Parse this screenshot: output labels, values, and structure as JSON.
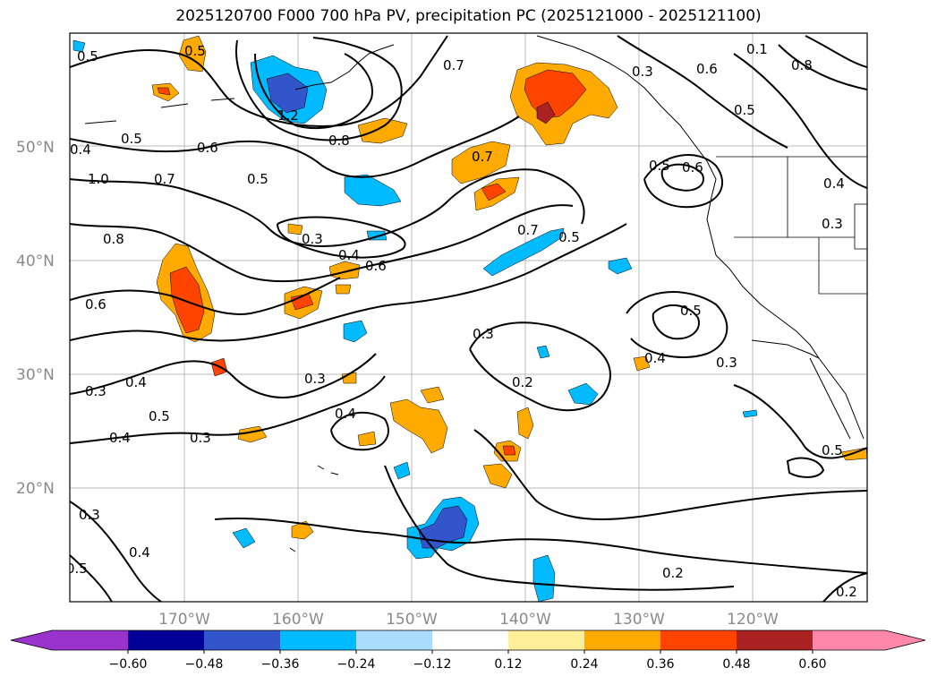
{
  "title": "2025120700 F000 700 hPa PV, precipitation PC (2025121000 - 2025121100)",
  "lat_labels": [
    "50°N",
    "40°N",
    "30°N",
    "20°N"
  ],
  "lon_labels": [
    "170°W",
    "160°W",
    "150°W",
    "140°W",
    "130°W",
    "120°W"
  ],
  "contour_labels": [
    "0.5",
    "0.5",
    "1.2",
    "0.8",
    "0.7",
    "0.3",
    "0.6",
    "0.8",
    "0.1",
    "0.4",
    "0.5",
    "0.6",
    "1.0",
    "0.7",
    "0.5",
    "0.5",
    "0.7",
    "0.5",
    "0.6",
    "0.4",
    "0.3",
    "0.8",
    "0.3",
    "0.4",
    "0.6",
    "0.7",
    "0.5",
    "0.6",
    "0.3",
    "0.5",
    "0.3",
    "0.4",
    "0.4",
    "0.3",
    "0.3",
    "0.2",
    "0.4",
    "0.5",
    "0.4",
    "0.3",
    "0.3",
    "0.4",
    "0.2",
    "0.2",
    "0.5",
    "0.5"
  ],
  "colorbar": {
    "ticks": [
      "−0.60",
      "−0.48",
      "−0.36",
      "−0.24",
      "−0.12",
      "0.12",
      "0.24",
      "0.36",
      "0.48",
      "0.60"
    ],
    "colors": [
      "#9933cc",
      "#000099",
      "#3355cc",
      "#00bbff",
      "#aaddff",
      "#ffffff",
      "#ffee99",
      "#ffaa00",
      "#ff4400",
      "#aa2222",
      "#ff88aa"
    ]
  },
  "fill_colors": {
    "orange": "#ffaa00",
    "red_orange": "#ff4400",
    "dark_red": "#aa2222",
    "cyan": "#00bbff",
    "blue": "#3355cc"
  }
}
